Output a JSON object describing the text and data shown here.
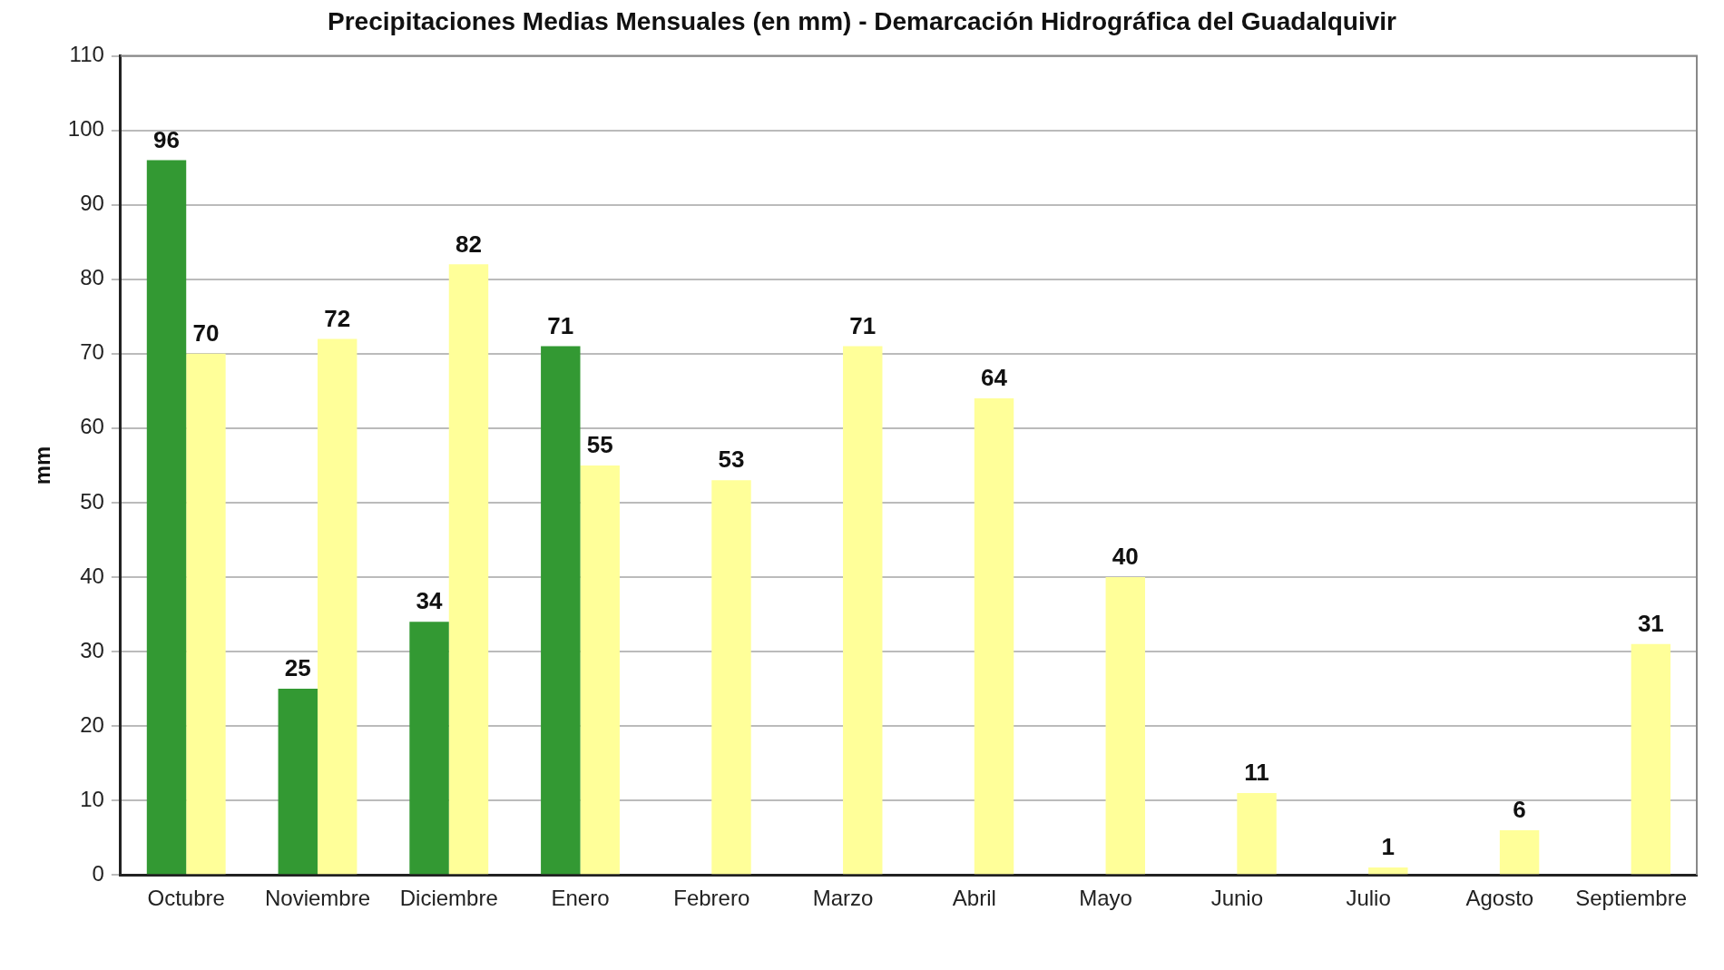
{
  "chart_data": {
    "type": "bar",
    "title": "Precipitaciones Medias Mensuales (en mm) - Demarcación Hidrográfica del Guadalquivir",
    "ylabel": "mm",
    "categories": [
      "Octubre",
      "Noviembre",
      "Diciembre",
      "Enero",
      "Febrero",
      "Marzo",
      "Abril",
      "Mayo",
      "Junio",
      "Julio",
      "Agosto",
      "Septiembre"
    ],
    "series": [
      {
        "color": "#339933",
        "values": [
          96,
          25,
          34,
          71,
          null,
          null,
          null,
          null,
          null,
          null,
          null,
          null
        ]
      },
      {
        "color": "#ffff99",
        "values": [
          70,
          72,
          82,
          55,
          53,
          71,
          64,
          40,
          11,
          1,
          6,
          31
        ]
      }
    ],
    "ylim": [
      0,
      110
    ],
    "yticks": [
      0,
      10,
      20,
      30,
      40,
      50,
      60,
      70,
      80,
      90,
      100,
      110
    ],
    "grid": "y",
    "data_labels": true,
    "legend": false
  }
}
